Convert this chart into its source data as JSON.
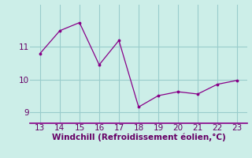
{
  "x": [
    13,
    14,
    15,
    16,
    17,
    18,
    19,
    20,
    21,
    22,
    23
  ],
  "y": [
    10.8,
    11.5,
    11.75,
    10.45,
    11.2,
    9.15,
    9.5,
    9.62,
    9.55,
    9.85,
    9.97
  ],
  "line_color": "#880088",
  "marker_color": "#880088",
  "bg_color": "#cceee8",
  "grid_color": "#99cccc",
  "xlabel": "Windchill (Refroidissement éolien,°C)",
  "xlabel_color": "#660066",
  "tick_color": "#660066",
  "yticks": [
    9,
    10,
    11
  ],
  "xticks": [
    13,
    14,
    15,
    16,
    17,
    18,
    19,
    20,
    21,
    22,
    23
  ],
  "ylim": [
    8.65,
    12.3
  ],
  "xlim": [
    12.5,
    23.5
  ],
  "tick_fontsize": 7.5,
  "xlabel_fontsize": 7.5
}
